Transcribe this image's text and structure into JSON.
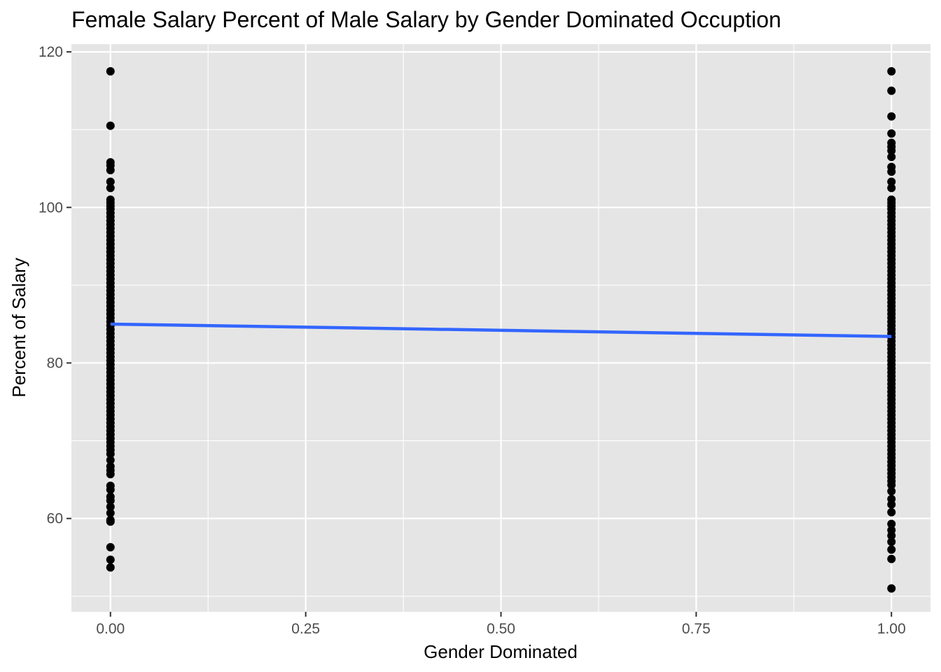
{
  "chart_data": {
    "type": "scatter",
    "title": "Female Salary Percent of Male Salary by Gender Dominated Occuption",
    "xlabel": "Gender Dominated",
    "ylabel": "Percent of Salary",
    "xlim": [
      -0.05,
      1.05
    ],
    "ylim": [
      48,
      121
    ],
    "x_ticks": [
      0,
      0.25,
      0.5,
      0.75,
      1
    ],
    "x_tick_labels": [
      "0.00",
      "0.25",
      "0.50",
      "0.75",
      "1.00"
    ],
    "y_ticks": [
      60,
      80,
      100,
      120
    ],
    "y_tick_labels": [
      "60",
      "80",
      "100",
      "120"
    ],
    "grid": true,
    "colors": {
      "panel": "#e5e5e5",
      "grid": "#ffffff",
      "points": "#000000",
      "trend": "#3366ff"
    },
    "series": [
      {
        "x": 0,
        "values": [
          117.5,
          110.5,
          105.8,
          105.4,
          104.8,
          103.3,
          102.5,
          101.0,
          100.6,
          100.2,
          99.8,
          99.3,
          98.8,
          98.3,
          97.8,
          97.3,
          96.8,
          96.3,
          95.8,
          95.3,
          94.8,
          94.3,
          93.8,
          93.3,
          92.8,
          92.3,
          91.8,
          91.3,
          90.8,
          90.3,
          89.8,
          89.3,
          88.8,
          88.3,
          87.8,
          87.3,
          86.8,
          86.3,
          85.8,
          85.3,
          84.8,
          84.3,
          83.8,
          83.3,
          82.8,
          82.3,
          81.8,
          81.3,
          80.8,
          80.3,
          79.8,
          79.3,
          78.8,
          78.3,
          77.8,
          77.3,
          76.8,
          76.3,
          75.8,
          75.3,
          74.8,
          74.3,
          73.8,
          73.3,
          72.8,
          72.3,
          71.8,
          71.3,
          70.8,
          70.3,
          69.8,
          69.3,
          68.8,
          68.3,
          67.5,
          66.7,
          66.2,
          65.7,
          64.2,
          63.7,
          62.8,
          62.3,
          61.5,
          60.7,
          59.8,
          59.6,
          56.3,
          54.7,
          53.7
        ]
      },
      {
        "x": 1,
        "values": [
          117.5,
          115.0,
          111.7,
          109.5,
          108.3,
          107.8,
          107.3,
          106.5,
          105.2,
          104.6,
          103.3,
          102.5,
          101.0,
          100.6,
          100.2,
          99.8,
          99.3,
          98.8,
          98.3,
          97.8,
          97.3,
          96.8,
          96.3,
          95.8,
          95.3,
          94.8,
          94.3,
          93.8,
          93.3,
          92.8,
          92.3,
          91.8,
          91.3,
          90.8,
          90.3,
          89.8,
          89.3,
          88.8,
          88.3,
          87.8,
          87.3,
          86.8,
          86.3,
          85.8,
          85.3,
          84.8,
          84.3,
          83.8,
          83.3,
          82.8,
          82.3,
          81.8,
          81.3,
          80.8,
          80.3,
          79.8,
          79.3,
          78.8,
          78.3,
          77.8,
          77.3,
          76.8,
          76.3,
          75.8,
          75.3,
          74.8,
          74.3,
          73.8,
          73.3,
          72.8,
          72.3,
          71.8,
          71.3,
          70.8,
          70.3,
          69.8,
          69.3,
          68.8,
          68.3,
          67.8,
          67.3,
          66.8,
          66.3,
          65.8,
          65.3,
          64.8,
          64.3,
          63.5,
          62.5,
          61.8,
          60.8,
          59.3,
          58.5,
          57.8,
          57.0,
          56.0,
          54.8,
          51.0
        ]
      }
    ],
    "trend_line": {
      "x": [
        0,
        1
      ],
      "y": [
        85.0,
        83.4
      ]
    }
  }
}
